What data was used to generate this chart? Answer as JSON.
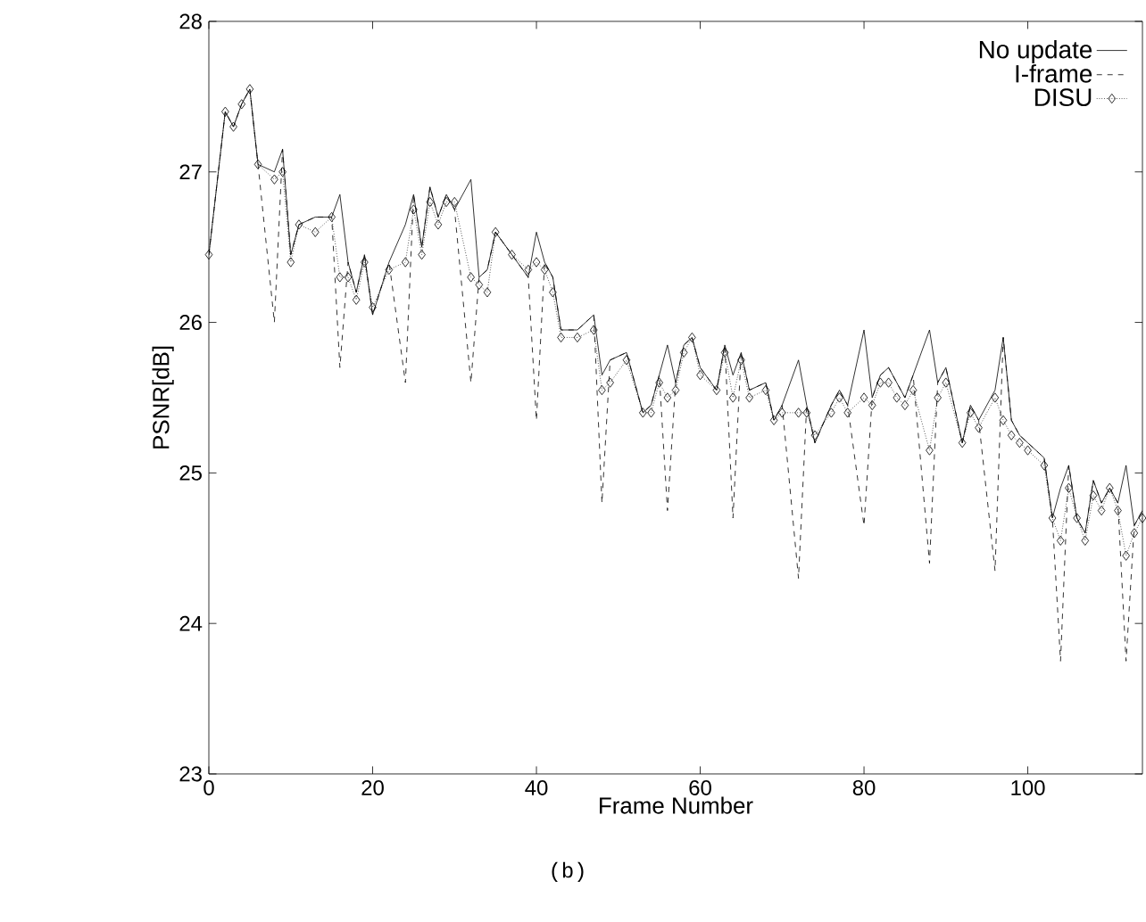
{
  "chart_data": {
    "type": "line",
    "xlabel": "Frame Number",
    "ylabel": "PSNR[dB]",
    "annotations": [
      "(b)"
    ],
    "xlim": [
      0,
      114
    ],
    "ylim": [
      23,
      28
    ],
    "xticks": [
      0,
      20,
      40,
      60,
      80,
      100
    ],
    "yticks": [
      23,
      24,
      25,
      26,
      27,
      28
    ],
    "legend": "top right",
    "grid": false,
    "x": [
      0,
      2,
      3,
      4,
      5,
      6,
      8,
      9,
      10,
      11,
      13,
      15,
      16,
      17,
      18,
      19,
      20,
      22,
      24,
      25,
      26,
      27,
      28,
      29,
      30,
      32,
      33,
      34,
      35,
      37,
      39,
      40,
      41,
      42,
      43,
      45,
      47,
      48,
      49,
      51,
      53,
      54,
      55,
      56,
      57,
      58,
      59,
      60,
      62,
      63,
      64,
      65,
      66,
      68,
      69,
      70,
      72,
      73,
      74,
      76,
      77,
      78,
      80,
      81,
      82,
      83,
      84,
      85,
      86,
      88,
      89,
      90,
      92,
      93,
      94,
      96,
      97,
      98,
      99,
      100,
      102,
      103,
      104,
      105,
      106,
      107,
      108,
      109,
      110,
      111,
      112,
      113,
      114
    ],
    "series": [
      {
        "name": "No update",
        "color": "#000000",
        "line_style": "solid",
        "marker": "none",
        "values": [
          26.45,
          27.4,
          27.3,
          27.45,
          27.55,
          27.05,
          27.0,
          27.15,
          26.45,
          26.65,
          26.7,
          26.7,
          26.85,
          26.4,
          26.2,
          26.45,
          26.05,
          26.4,
          26.65,
          26.85,
          26.5,
          26.9,
          26.7,
          26.85,
          26.75,
          26.95,
          26.3,
          26.35,
          26.6,
          26.45,
          26.3,
          26.6,
          26.4,
          26.3,
          25.95,
          25.95,
          26.05,
          25.65,
          25.75,
          25.8,
          25.4,
          25.45,
          25.65,
          25.85,
          25.6,
          25.85,
          25.9,
          25.7,
          25.55,
          25.85,
          25.65,
          25.8,
          25.55,
          25.6,
          25.35,
          25.45,
          25.75,
          25.45,
          25.2,
          25.45,
          25.55,
          25.45,
          25.95,
          25.5,
          25.65,
          25.7,
          25.6,
          25.5,
          25.65,
          25.95,
          25.6,
          25.7,
          25.2,
          25.45,
          25.35,
          25.55,
          25.9,
          25.35,
          25.25,
          25.2,
          25.1,
          24.7,
          24.9,
          25.05,
          24.7,
          24.6,
          24.95,
          24.8,
          24.9,
          24.8,
          25.05,
          24.65,
          24.75
        ]
      },
      {
        "name": "I-frame",
        "color": "#000000",
        "line_style": "dashed",
        "marker": "none",
        "values": [
          26.45,
          27.4,
          27.3,
          27.45,
          27.55,
          27.05,
          26.0,
          27.15,
          26.45,
          26.65,
          26.7,
          26.7,
          25.7,
          26.4,
          26.2,
          26.45,
          26.05,
          26.4,
          25.6,
          26.85,
          26.5,
          26.9,
          26.7,
          26.85,
          26.75,
          25.6,
          26.3,
          26.35,
          26.6,
          26.45,
          26.3,
          25.35,
          26.4,
          26.3,
          25.95,
          25.95,
          26.05,
          24.8,
          25.75,
          25.8,
          25.4,
          25.45,
          25.65,
          24.75,
          25.6,
          25.85,
          25.9,
          25.7,
          25.55,
          25.85,
          24.7,
          25.8,
          25.55,
          25.6,
          25.35,
          25.45,
          24.3,
          25.45,
          25.2,
          25.45,
          25.55,
          25.45,
          24.65,
          25.5,
          25.65,
          25.7,
          25.6,
          25.5,
          25.65,
          24.4,
          25.6,
          25.7,
          25.2,
          25.45,
          25.35,
          24.35,
          25.9,
          25.35,
          25.25,
          25.2,
          25.1,
          24.7,
          23.75,
          25.05,
          24.7,
          24.6,
          24.95,
          24.8,
          24.9,
          24.8,
          23.75,
          24.65,
          24.75
        ]
      },
      {
        "name": "DISU",
        "color": "#000000",
        "line_style": "dotted",
        "marker": "diamond",
        "values": [
          26.45,
          27.4,
          27.3,
          27.45,
          27.55,
          27.05,
          26.95,
          27.0,
          26.4,
          26.65,
          26.6,
          26.7,
          26.3,
          26.3,
          26.15,
          26.4,
          26.1,
          26.35,
          26.4,
          26.75,
          26.45,
          26.8,
          26.65,
          26.8,
          26.8,
          26.3,
          26.25,
          26.2,
          26.6,
          26.45,
          26.35,
          26.4,
          26.35,
          26.2,
          25.9,
          25.9,
          25.95,
          25.55,
          25.6,
          25.75,
          25.4,
          25.4,
          25.6,
          25.5,
          25.55,
          25.8,
          25.9,
          25.65,
          25.55,
          25.8,
          25.5,
          25.75,
          25.5,
          25.55,
          25.35,
          25.4,
          25.4,
          25.4,
          25.25,
          25.4,
          25.5,
          25.4,
          25.5,
          25.45,
          25.6,
          25.6,
          25.5,
          25.45,
          25.55,
          25.15,
          25.5,
          25.6,
          25.2,
          25.4,
          25.3,
          25.5,
          25.35,
          25.25,
          25.2,
          25.15,
          25.05,
          24.7,
          24.55,
          24.9,
          24.7,
          24.55,
          24.85,
          24.75,
          24.9,
          24.75,
          24.45,
          24.6,
          24.7
        ]
      }
    ]
  }
}
